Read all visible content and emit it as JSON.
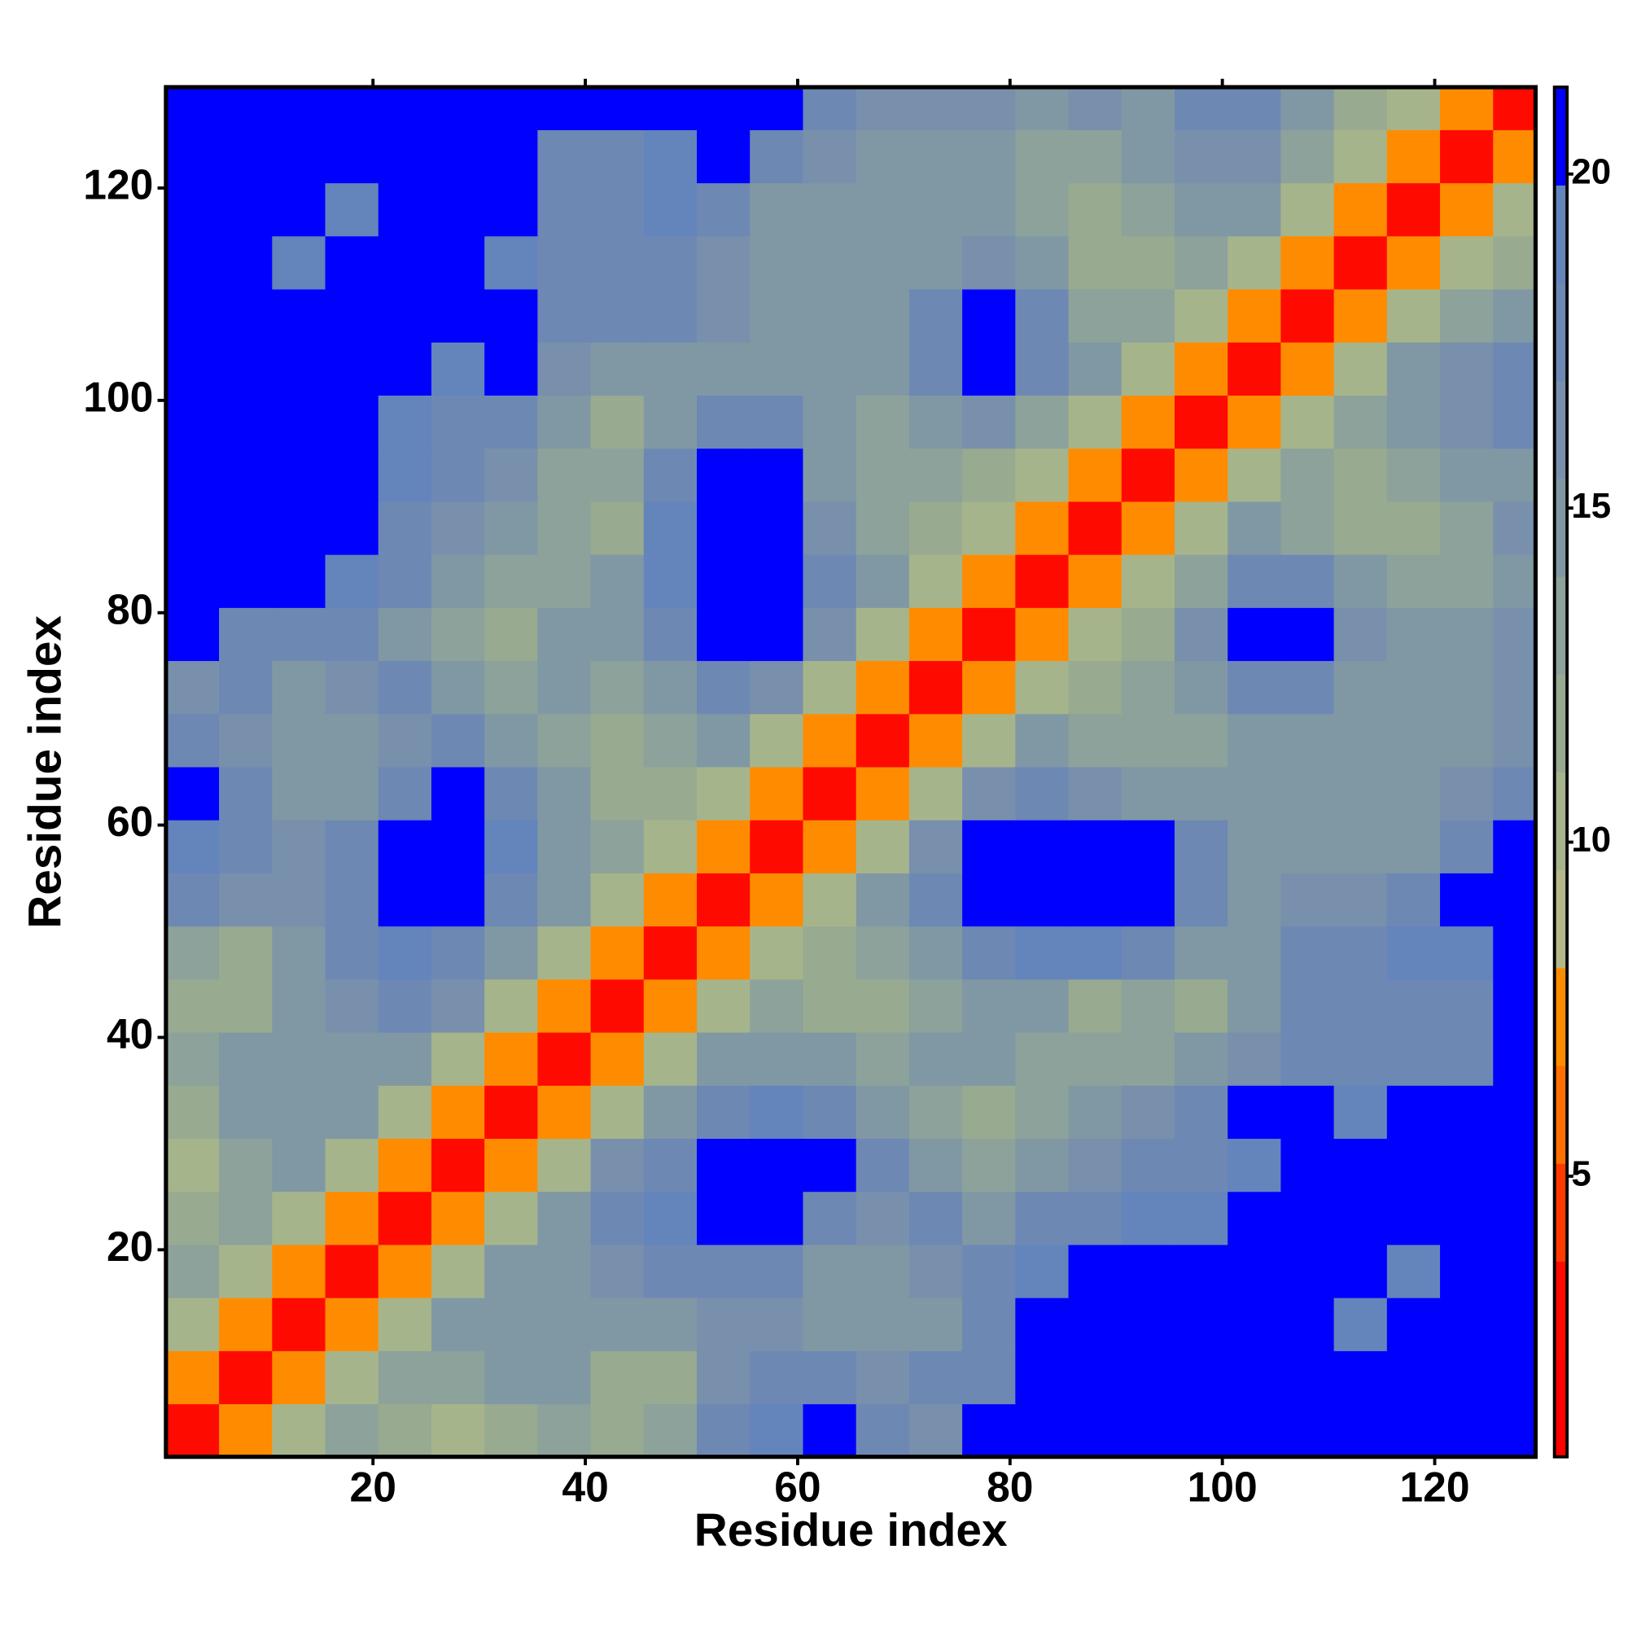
{
  "chart_data": {
    "type": "heatmap",
    "xlabel": "Residue index",
    "ylabel": "Residue index",
    "xlim": [
      0.5,
      129.5
    ],
    "ylim": [
      0.5,
      129.5
    ],
    "xticks": [
      20,
      40,
      60,
      80,
      100,
      120
    ],
    "yticks": [
      20,
      40,
      60,
      80,
      100,
      120
    ],
    "xbins": [
      0.5,
      5.5,
      10.5,
      15.5,
      20.5,
      25.5,
      30.5,
      35.5,
      40.5,
      45.5,
      50.5,
      55.5,
      60.5,
      65.5,
      70.5,
      75.5,
      80.5,
      85.5,
      90.5,
      95.5,
      100.5,
      105.5,
      110.5,
      115.5,
      120.5,
      125.5,
      129.5
    ],
    "ybins": [
      0.5,
      5.5,
      10.5,
      15.5,
      20.5,
      25.5,
      30.5,
      35.5,
      40.5,
      45.5,
      50.5,
      55.5,
      60.5,
      65.5,
      70.5,
      75.5,
      80.5,
      85.5,
      90.5,
      95.5,
      100.5,
      105.5,
      110.5,
      115.5,
      120.5,
      125.5,
      129.5
    ],
    "clim": [
      0.8,
      21.3
    ],
    "cticks": [
      5,
      10,
      15,
      20
    ],
    "colormap": [
      "#ff0000",
      "#ff0a00",
      "#ff3a00",
      "#ff7000",
      "#ff8c00",
      "#b4b88a",
      "#a6b48c",
      "#98aa90",
      "#8ca29a",
      "#8098a4",
      "#7890ac",
      "#6e88b4",
      "#6484bc",
      "#0000ff"
    ],
    "values": [
      [
        3,
        7,
        11,
        13,
        12,
        11,
        12,
        13,
        12,
        13,
        17,
        19,
        21,
        18,
        16,
        20,
        21,
        21,
        21,
        21,
        21,
        21,
        21,
        21,
        21,
        21
      ],
      [
        7,
        3,
        7,
        11,
        13,
        13,
        14,
        15,
        12,
        12,
        16,
        17,
        18,
        16,
        17,
        18,
        20,
        21,
        21,
        21,
        21,
        21,
        21,
        21,
        21,
        21
      ],
      [
        11,
        7,
        3,
        7,
        11,
        14,
        15,
        14,
        15,
        14,
        16,
        16,
        15,
        14,
        15,
        18,
        20,
        20,
        21,
        20,
        21,
        21,
        19,
        20,
        21,
        21
      ],
      [
        13,
        11,
        7,
        3,
        7,
        11,
        14,
        15,
        16,
        17,
        18,
        17,
        15,
        15,
        16,
        17,
        19,
        20,
        20,
        20,
        21,
        21,
        20,
        19,
        21,
        21
      ],
      [
        12,
        13,
        11,
        7,
        3,
        7,
        11,
        15,
        17,
        19,
        20,
        20,
        18,
        16,
        17,
        15,
        17,
        18,
        19,
        19,
        21,
        21,
        20,
        21,
        21,
        21
      ],
      [
        11,
        13,
        14,
        11,
        7,
        3,
        7,
        11,
        16,
        18,
        20,
        21,
        20,
        17,
        14,
        13,
        15,
        16,
        17,
        18,
        19,
        20,
        21,
        21,
        21,
        21
      ],
      [
        12,
        14,
        15,
        14,
        11,
        7,
        3,
        7,
        11,
        15,
        18,
        19,
        18,
        15,
        13,
        12,
        13,
        14,
        16,
        18,
        20,
        20,
        19,
        20,
        20,
        21
      ],
      [
        13,
        15,
        14,
        15,
        15,
        11,
        7,
        3,
        7,
        11,
        15,
        14,
        15,
        13,
        14,
        14,
        13,
        13,
        13,
        14,
        16,
        18,
        17,
        18,
        18,
        21
      ],
      [
        12,
        12,
        15,
        16,
        17,
        16,
        11,
        7,
        3,
        7,
        11,
        13,
        12,
        12,
        13,
        14,
        15,
        12,
        13,
        12,
        15,
        17,
        17,
        17,
        18,
        21
      ],
      [
        13,
        12,
        14,
        17,
        19,
        18,
        15,
        11,
        7,
        3,
        7,
        11,
        12,
        13,
        14,
        17,
        19,
        19,
        18,
        15,
        15,
        17,
        18,
        19,
        19,
        21
      ],
      [
        17,
        16,
        16,
        18,
        20,
        20,
        18,
        15,
        11,
        7,
        3,
        7,
        11,
        14,
        17,
        21,
        21,
        21,
        21,
        17,
        14,
        16,
        16,
        18,
        20,
        21
      ],
      [
        19,
        17,
        16,
        17,
        20,
        21,
        19,
        14,
        13,
        11,
        7,
        3,
        7,
        11,
        16,
        20,
        21,
        21,
        21,
        17,
        14,
        14,
        14,
        15,
        18,
        20
      ],
      [
        21,
        18,
        15,
        15,
        18,
        20,
        18,
        15,
        12,
        12,
        11,
        7,
        3,
        7,
        11,
        16,
        17,
        16,
        15,
        14,
        14,
        14,
        15,
        14,
        16,
        18
      ],
      [
        18,
        16,
        14,
        15,
        16,
        17,
        15,
        13,
        12,
        13,
        14,
        11,
        7,
        3,
        7,
        11,
        14,
        13,
        13,
        13,
        15,
        15,
        14,
        14,
        15,
        16
      ],
      [
        16,
        17,
        15,
        16,
        17,
        14,
        13,
        14,
        13,
        14,
        17,
        16,
        11,
        7,
        3,
        7,
        11,
        12,
        13,
        15,
        18,
        17,
        15,
        14,
        15,
        16
      ],
      [
        20,
        18,
        18,
        17,
        15,
        13,
        12,
        14,
        14,
        17,
        21,
        20,
        16,
        11,
        7,
        3,
        7,
        11,
        12,
        16,
        21,
        20,
        16,
        14,
        14,
        16
      ],
      [
        21,
        20,
        20,
        19,
        17,
        15,
        13,
        13,
        15,
        19,
        21,
        21,
        17,
        14,
        11,
        7,
        3,
        7,
        11,
        13,
        18,
        17,
        14,
        13,
        13,
        15
      ],
      [
        21,
        21,
        20,
        20,
        18,
        16,
        14,
        13,
        12,
        19,
        21,
        21,
        16,
        13,
        12,
        11,
        7,
        3,
        7,
        11,
        14,
        13,
        12,
        12,
        13,
        16
      ],
      [
        21,
        21,
        21,
        20,
        19,
        17,
        16,
        13,
        13,
        18,
        21,
        21,
        15,
        13,
        13,
        12,
        11,
        7,
        3,
        7,
        11,
        13,
        12,
        13,
        14,
        15
      ],
      [
        21,
        21,
        20,
        20,
        19,
        18,
        18,
        14,
        12,
        15,
        17,
        17,
        14,
        13,
        15,
        16,
        13,
        11,
        7,
        3,
        7,
        11,
        13,
        15,
        16,
        18
      ],
      [
        21,
        21,
        21,
        21,
        21,
        19,
        20,
        16,
        15,
        15,
        14,
        14,
        14,
        15,
        18,
        21,
        18,
        14,
        11,
        7,
        3,
        7,
        11,
        14,
        16,
        18
      ],
      [
        21,
        21,
        21,
        21,
        21,
        20,
        20,
        18,
        17,
        17,
        16,
        14,
        14,
        15,
        17,
        20,
        17,
        13,
        13,
        11,
        7,
        3,
        7,
        11,
        13,
        15
      ],
      [
        21,
        21,
        19,
        20,
        20,
        21,
        19,
        17,
        17,
        18,
        16,
        14,
        15,
        14,
        15,
        16,
        14,
        12,
        12,
        13,
        11,
        7,
        3,
        7,
        11,
        12
      ],
      [
        21,
        21,
        20,
        19,
        21,
        21,
        20,
        18,
        17,
        19,
        18,
        15,
        14,
        14,
        14,
        14,
        13,
        12,
        13,
        15,
        14,
        11,
        7,
        3,
        7,
        11
      ],
      [
        21,
        21,
        21,
        21,
        21,
        21,
        20,
        18,
        18,
        19,
        20,
        18,
        16,
        15,
        15,
        14,
        13,
        13,
        14,
        16,
        16,
        13,
        11,
        7,
        3,
        7
      ],
      [
        21,
        21,
        21,
        21,
        21,
        21,
        21,
        21,
        21,
        21,
        21,
        20,
        18,
        16,
        16,
        16,
        15,
        16,
        15,
        18,
        18,
        15,
        12,
        11,
        7,
        3
      ]
    ]
  }
}
